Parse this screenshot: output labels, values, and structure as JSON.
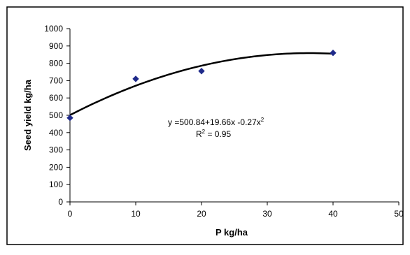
{
  "chart_data": {
    "type": "scatter",
    "xlabel": "P kg/ha",
    "ylabel": "Seed yield kg/ha",
    "xlim": [
      0,
      50
    ],
    "ylim": [
      0,
      1000
    ],
    "x_ticks": [
      0,
      10,
      20,
      30,
      40,
      50
    ],
    "y_ticks": [
      0,
      100,
      200,
      300,
      400,
      500,
      600,
      700,
      800,
      900,
      1000
    ],
    "grid": false,
    "legend": "none",
    "series": [
      {
        "marker": "diamond",
        "color": "#1f2a8a",
        "x": [
          0,
          10,
          20,
          40
        ],
        "y": [
          485,
          710,
          755,
          860
        ]
      }
    ],
    "trendline": {
      "type": "polynomial",
      "coefficients": [
        500.84,
        19.66,
        -0.27
      ],
      "x_range": [
        0,
        40
      ],
      "color": "#000000"
    },
    "annotations": {
      "equation_prefix": "y =500.84+19.66x -0.27x",
      "equation_exponent": "2",
      "r2_prefix": "R",
      "r2_exponent": "2",
      "r2_suffix": " = 0.95"
    }
  }
}
